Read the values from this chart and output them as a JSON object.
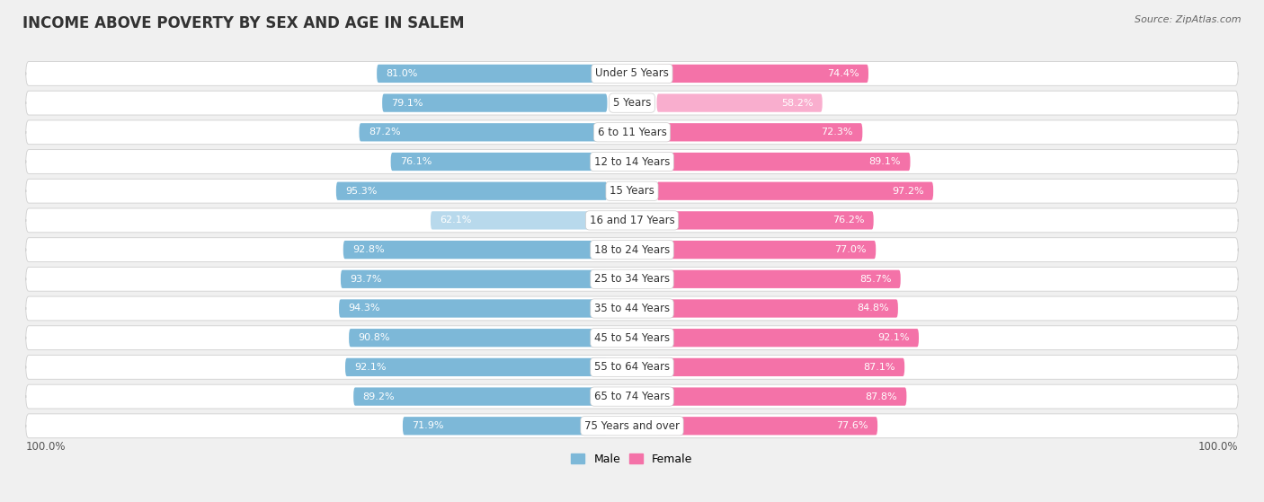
{
  "title": "INCOME ABOVE POVERTY BY SEX AND AGE IN SALEM",
  "source": "Source: ZipAtlas.com",
  "categories": [
    "Under 5 Years",
    "5 Years",
    "6 to 11 Years",
    "12 to 14 Years",
    "15 Years",
    "16 and 17 Years",
    "18 to 24 Years",
    "25 to 34 Years",
    "35 to 44 Years",
    "45 to 54 Years",
    "55 to 64 Years",
    "65 to 74 Years",
    "75 Years and over"
  ],
  "male_values": [
    81.0,
    79.1,
    87.2,
    76.1,
    95.3,
    62.1,
    92.8,
    93.7,
    94.3,
    90.8,
    92.1,
    89.2,
    71.9
  ],
  "female_values": [
    74.4,
    58.2,
    72.3,
    89.1,
    97.2,
    76.2,
    77.0,
    85.7,
    84.8,
    92.1,
    87.1,
    87.8,
    77.6
  ],
  "male_color": "#7db8d8",
  "male_color_light": "#b8d9ec",
  "female_color": "#f472a8",
  "female_color_light": "#f9aece",
  "bg_color": "#f0f0f0",
  "row_bg_color": "#e8e8e8",
  "title_fontsize": 12,
  "label_fontsize": 8.5,
  "value_fontsize": 8,
  "legend_fontsize": 9,
  "source_fontsize": 8,
  "light_threshold": 68
}
